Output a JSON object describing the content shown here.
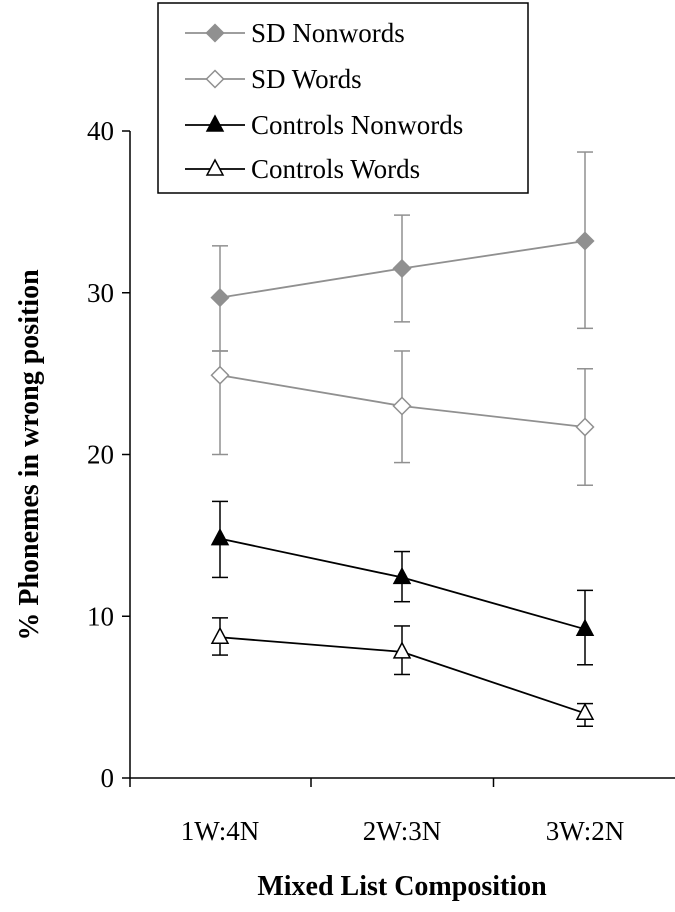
{
  "chart_data": {
    "type": "line",
    "title": "",
    "xlabel": "Mixed List Composition",
    "ylabel": "% Phonemes in wrong position",
    "categories": [
      "1W:4N",
      "2W:3N",
      "3W:2N"
    ],
    "ylim": [
      0,
      40
    ],
    "yticks": [
      0,
      10,
      20,
      30,
      40
    ],
    "grid": false,
    "legend_position": "top-left",
    "series": [
      {
        "name": "SD Nonwords",
        "values": [
          29.7,
          31.5,
          33.2
        ],
        "err_low": [
          26.4,
          28.2,
          27.8
        ],
        "err_high": [
          32.9,
          34.8,
          38.7
        ],
        "color": "#909090",
        "marker": "diamond",
        "filled": true
      },
      {
        "name": "SD Words",
        "values": [
          24.9,
          23.0,
          21.7
        ],
        "err_low": [
          20.0,
          19.5,
          18.1
        ],
        "err_high": [
          26.4,
          26.4,
          25.3
        ],
        "color": "#909090",
        "marker": "diamond",
        "filled": false
      },
      {
        "name": "Controls Nonwords",
        "values": [
          14.8,
          12.4,
          9.2
        ],
        "err_low": [
          12.4,
          10.9,
          7.0
        ],
        "err_high": [
          17.1,
          14.0,
          11.6
        ],
        "color": "#000000",
        "marker": "triangle",
        "filled": true
      },
      {
        "name": "Controls Words",
        "values": [
          8.7,
          7.8,
          4.0
        ],
        "err_low": [
          7.6,
          6.4,
          3.2
        ],
        "err_high": [
          9.9,
          9.4,
          4.6
        ],
        "color": "#000000",
        "marker": "triangle",
        "filled": false
      }
    ]
  }
}
